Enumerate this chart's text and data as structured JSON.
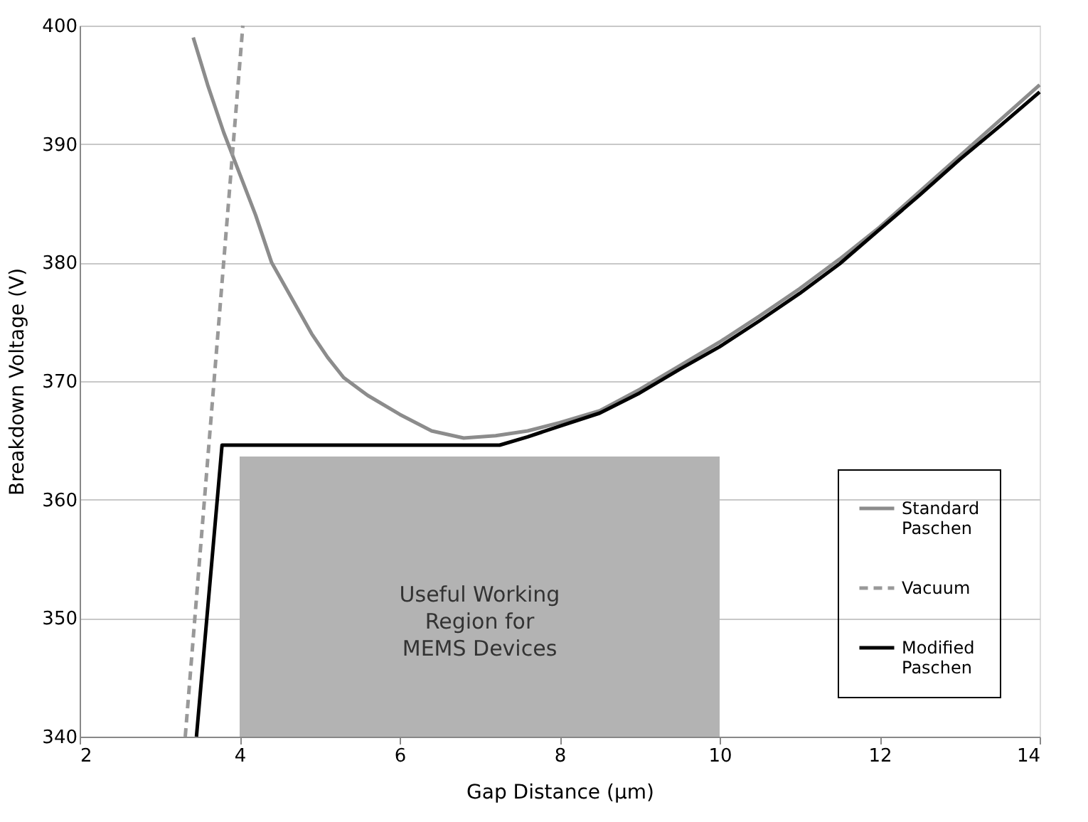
{
  "chart_data": {
    "type": "line",
    "xlabel": "Gap Distance (μm)",
    "ylabel": "Breakdown Voltage (V)",
    "xlim": [
      2,
      14
    ],
    "xticks": [
      2,
      4,
      6,
      8,
      10,
      12,
      14
    ],
    "ylim": [
      340,
      400
    ],
    "yticks": [
      340,
      350,
      360,
      370,
      380,
      390,
      400
    ],
    "grid": "y",
    "legend": "bottom right",
    "marker": "none",
    "series": [
      {
        "name": "Standard Paschen",
        "color": "#8c8c8c",
        "line_style": "solid",
        "x": [
          3.42,
          3.6,
          3.8,
          4.0,
          4.2,
          4.4,
          4.65,
          4.9,
          5.1,
          5.3,
          5.6,
          6.0,
          6.4,
          6.8,
          7.2,
          7.6,
          8.0,
          8.5,
          9.0,
          9.5,
          10,
          10.5,
          11,
          11.5,
          12,
          12.5,
          13,
          13.5,
          14
        ],
        "values": [
          399,
          395,
          391,
          387.5,
          384,
          380,
          377,
          374,
          372,
          370.3,
          368.8,
          367.2,
          365.8,
          365.2,
          365.4,
          365.8,
          366.5,
          367.5,
          369.3,
          371.3,
          373.3,
          375.5,
          377.8,
          380.3,
          383,
          386,
          389,
          392,
          395
        ]
      },
      {
        "name": "Vacuum",
        "color": "#999999",
        "line_style": "dashed",
        "x": [
          3.32,
          4.04
        ],
        "values": [
          340,
          400
        ]
      },
      {
        "name": "Modified Paschen",
        "color": "#000000",
        "line_style": "solid",
        "x": [
          3.46,
          3.78,
          7.25,
          7.6,
          8,
          8.5,
          9,
          9.5,
          10,
          10.5,
          11,
          11.5,
          12,
          12.5,
          13,
          13.5,
          14
        ],
        "values": [
          340,
          364.6,
          364.6,
          365.3,
          366.2,
          367.3,
          369,
          371,
          372.9,
          375.1,
          377.4,
          379.9,
          382.8,
          385.7,
          388.7,
          391.5,
          394.4
        ]
      }
    ],
    "bands": [
      {
        "axis": "x",
        "from": 4,
        "to": 10,
        "label": "Useful Working Region for MEMS Devices",
        "color": "#b3b3b3"
      }
    ]
  }
}
